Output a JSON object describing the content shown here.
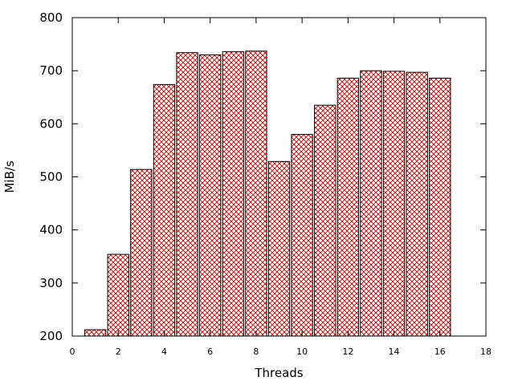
{
  "chart_data": {
    "type": "bar",
    "xlabel": "Threads",
    "ylabel": "MiB/s",
    "xlim": [
      0,
      18
    ],
    "ylim": [
      200,
      800
    ],
    "x_ticks": [
      "0",
      "2",
      "4",
      "6",
      "8",
      "10",
      "12",
      "14",
      "16",
      "18"
    ],
    "y_ticks": [
      "200",
      "300",
      "400",
      "500",
      "600",
      "700",
      "800"
    ],
    "grid": false,
    "legend": "none",
    "bar_fill": "crosshatch",
    "bar_color": "#cc0000",
    "bar_edge_color": "#000000",
    "x": [
      1,
      2,
      3,
      4,
      5,
      6,
      7,
      8,
      9,
      10,
      11,
      12,
      13,
      14,
      15,
      16
    ],
    "values": [
      212,
      354,
      514,
      674,
      734,
      730,
      736,
      737,
      529,
      580,
      635,
      686,
      700,
      699,
      697,
      686
    ]
  }
}
